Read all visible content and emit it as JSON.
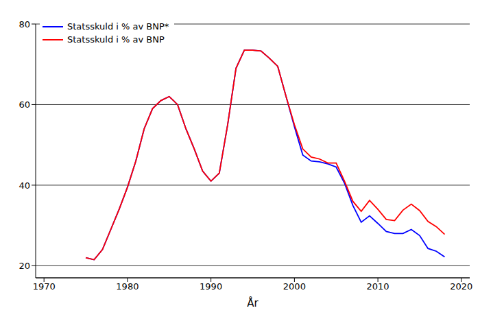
{
  "chart_data": {
    "type": "line",
    "x_label": "År",
    "x": [
      1975,
      1976,
      1977,
      1978,
      1979,
      1980,
      1981,
      1982,
      1983,
      1984,
      1985,
      1986,
      1987,
      1988,
      1989,
      1990,
      1991,
      1992,
      1993,
      1994,
      1995,
      1996,
      1997,
      1998,
      1999,
      2000,
      2001,
      2002,
      2003,
      2004,
      2005,
      2006,
      2007,
      2008,
      2009,
      2010,
      2011,
      2012,
      2013,
      2014,
      2015,
      2016,
      2017,
      2018
    ],
    "series": [
      {
        "name": "Statsskuld i % av BNP*",
        "color": "#0000ff",
        "values": [
          22,
          21.5,
          24,
          29,
          34,
          39.5,
          46,
          54,
          59,
          61,
          62,
          60,
          54,
          49,
          43.5,
          41,
          43,
          55,
          69,
          73.5,
          73.5,
          73.3,
          71.5,
          69.5,
          62,
          54.5,
          47.5,
          46,
          45.8,
          45.3,
          44.5,
          40.5,
          35,
          30.8,
          32.4,
          30.5,
          28.5,
          28,
          28,
          29,
          27.5,
          24.3,
          23.6,
          22.2
        ]
      },
      {
        "name": "Statsskuld i % av BNP",
        "color": "#ff0000",
        "values": [
          22,
          21.5,
          24,
          29,
          34,
          39.5,
          46,
          54,
          59,
          61,
          62,
          60,
          54,
          49,
          43.5,
          41,
          43,
          55,
          69,
          73.5,
          73.5,
          73.3,
          71.5,
          69.5,
          62,
          55,
          49,
          47,
          46.5,
          45.5,
          45.5,
          41,
          36,
          33.5,
          36.2,
          34,
          31.5,
          31.2,
          33.8,
          35.3,
          33.7,
          31,
          29.7,
          27.8
        ]
      }
    ],
    "xlim": [
      1969,
      2021
    ],
    "xticks": [
      1970,
      1980,
      1990,
      2000,
      2010,
      2020
    ],
    "ylim": [
      17,
      80
    ],
    "yticks": [
      20,
      40,
      60,
      80
    ],
    "grid": true,
    "legend": "upper left"
  }
}
